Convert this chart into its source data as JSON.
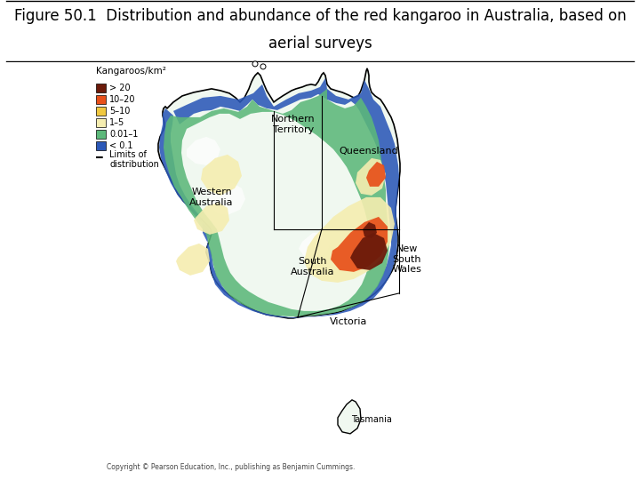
{
  "title_line1": "Figure 50.1  Distribution and abundance of the red kangaroo in Australia, based on",
  "title_line2": "aerial surveys",
  "title_fontsize": 12,
  "title_color": "#000000",
  "background_color": "#ffffff",
  "fig_width": 7.2,
  "fig_height": 5.4,
  "dpi": 100,
  "legend_title": "Kangaroos/km²",
  "legend_colors": [
    "#6B1A0A",
    "#E8501A",
    "#F0C840",
    "#F5EDB0",
    "#5CB87A",
    "#2B58B8"
  ],
  "legend_labels": [
    "> 20",
    "10–20",
    "5–10",
    "1–5",
    "0.01–1",
    "< 0.1"
  ],
  "copyright_text": "Copyright © Pearson Education, Inc., publishing as Benjamin Cummings."
}
